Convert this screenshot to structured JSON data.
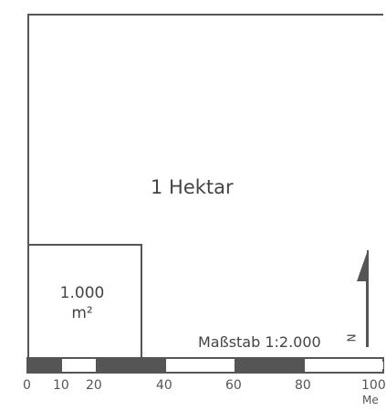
{
  "diagram": {
    "hectare_label": "1 Hektar",
    "small_area_label_line1": "1.000",
    "small_area_label_line2": "m²",
    "scale_label": "Maßstab 1:2.000",
    "north_letter": "N",
    "unit_label": "Me",
    "scale_ticks": [
      "0",
      "10",
      "20",
      "40",
      "60",
      "80",
      "100"
    ],
    "colors": {
      "line": "#555555",
      "bar_dark": "#555555",
      "bar_light": "#ffffff",
      "text": "#444444"
    }
  }
}
